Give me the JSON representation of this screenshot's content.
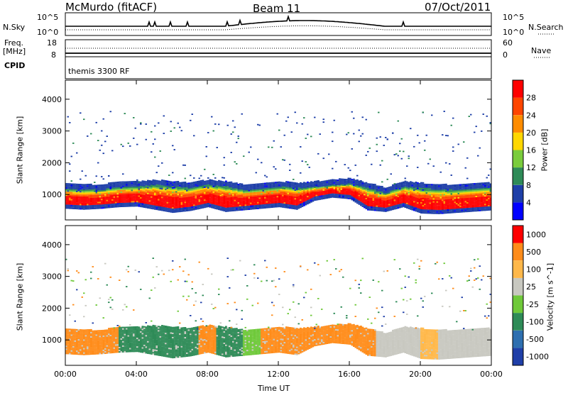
{
  "header": {
    "station": "McMurdo (fitACF)",
    "beam": "Beam 11",
    "date": "07/Oct/2011"
  },
  "panels": {
    "nsky_label": "N.Sky",
    "nsky_ticks": [
      "10^5",
      "10^0"
    ],
    "nsearch_label": "N.Search",
    "nsearch_ticks": [
      "10^5",
      "10^0"
    ],
    "freq_label": "Freq.",
    "freq_unit": "[MHz]",
    "freq_ticks": [
      "18",
      "8"
    ],
    "nave_label": "Nave",
    "nave_ticks": [
      "60",
      "0"
    ],
    "cpid_label": "CPID",
    "cpid_value": "themis 3300 RF"
  },
  "chart_data": [
    {
      "type": "heatmap",
      "name": "power",
      "ylabel": "Slant Range [km]",
      "xlabel": "Time UT",
      "xlim": [
        0,
        24
      ],
      "ylim": [
        200,
        4600
      ],
      "xticks": [
        "00:00",
        "04:00",
        "08:00",
        "12:00",
        "16:00",
        "20:00",
        "00:00"
      ],
      "yticks": [
        1000,
        2000,
        3000,
        4000
      ],
      "colorbar_label": "Power [dB]",
      "colorbar_ticks": [
        4,
        8,
        12,
        16,
        20,
        24,
        28
      ],
      "colors": [
        "#0000ff",
        "#1e3fa8",
        "#2e8b57",
        "#7acc3c",
        "#ffd700",
        "#ff8c00",
        "#ff4500",
        "#ff0000"
      ],
      "bands": [
        {
          "hours": [
            0,
            1,
            2,
            3,
            4,
            5,
            6,
            7,
            8,
            9,
            10,
            11,
            12,
            13,
            14,
            15,
            16,
            17,
            18,
            19,
            20,
            21,
            22,
            23,
            24
          ],
          "core_low_km": [
            650,
            620,
            650,
            700,
            720,
            620,
            520,
            580,
            700,
            550,
            600,
            650,
            700,
            620,
            900,
            1000,
            950,
            600,
            550,
            700,
            500,
            480,
            520,
            560,
            600
          ],
          "core_high_km": [
            1150,
            1100,
            1100,
            1200,
            1200,
            1250,
            1200,
            1150,
            1250,
            1200,
            1100,
            1150,
            1200,
            1150,
            1200,
            1250,
            1300,
            1150,
            1000,
            1200,
            1150,
            1100,
            1100,
            1150,
            1150
          ]
        }
      ]
    },
    {
      "type": "heatmap",
      "name": "velocity",
      "ylabel": "Slant Range [km]",
      "xlabel": "Time UT",
      "xlim": [
        0,
        24
      ],
      "ylim": [
        200,
        4600
      ],
      "xticks": [
        "00:00",
        "04:00",
        "08:00",
        "12:00",
        "16:00",
        "20:00",
        "00:00"
      ],
      "yticks": [
        1000,
        2000,
        3000,
        4000
      ],
      "colorbar_label": "Velocity [m s^-1]",
      "colorbar_ticks": [
        "1000",
        "500",
        "100",
        "25",
        "-25",
        "-100",
        "-500",
        "-1000"
      ],
      "colors": [
        "#1f3fa8",
        "#2e6fb0",
        "#2e8b57",
        "#6fc93a",
        "#c8c8c0",
        "#ffb84a",
        "#ff8c1a",
        "#ff0000"
      ]
    }
  ]
}
